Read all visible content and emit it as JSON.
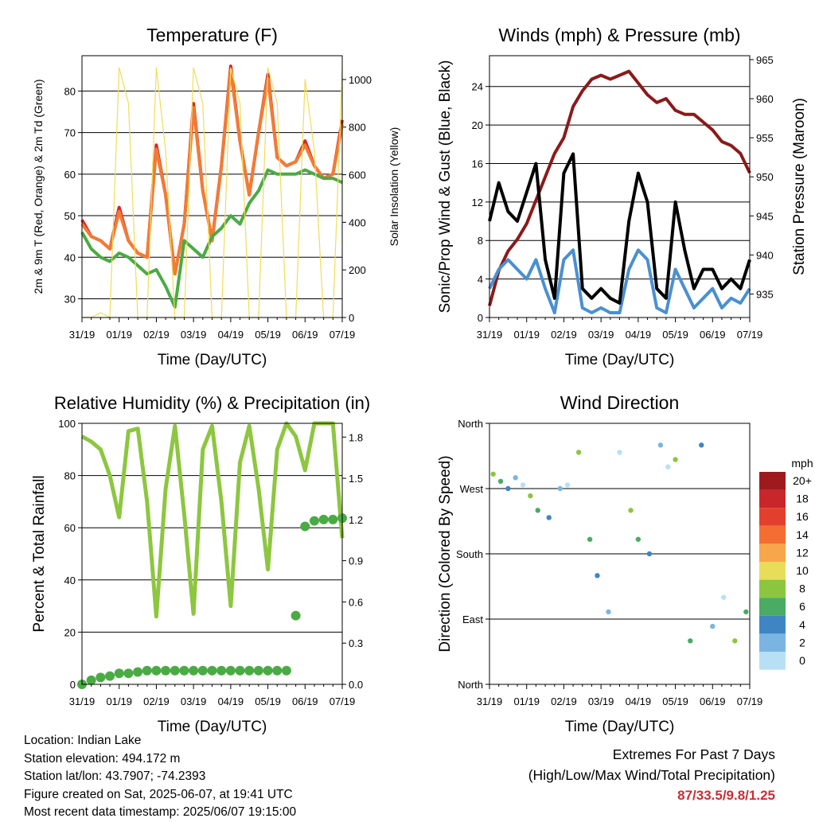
{
  "chart_data": [
    {
      "type": "line",
      "title": "Temperature (F)",
      "xlabel": "Time (Day/UTC)",
      "ylabel": "2m & 9m T (Red, Orange) & 2m Td (Green)",
      "ylabel_right": "Solar Insolation (Yellow)",
      "x_ticks": [
        "31/19",
        "01/19",
        "02/19",
        "03/19",
        "04/19",
        "05/19",
        "06/19",
        "07/19"
      ],
      "ylim": [
        25.5,
        88.5
      ],
      "y_ticks": [
        30,
        40,
        50,
        60,
        70,
        80
      ],
      "y2lim": [
        0,
        1100
      ],
      "y2_ticks": [
        0,
        200,
        400,
        600,
        800,
        1000
      ],
      "grid": true,
      "x": [
        0,
        0.25,
        0.5,
        0.75,
        1,
        1.25,
        1.5,
        1.75,
        2,
        2.25,
        2.5,
        2.75,
        3,
        3.25,
        3.5,
        3.75,
        4,
        4.25,
        4.5,
        4.75,
        5,
        5.25,
        5.5,
        5.75,
        6,
        6.25,
        6.5,
        6.75,
        7
      ],
      "series": [
        {
          "color": "#d62728",
          "values": [
            49,
            45,
            44,
            42,
            52,
            44,
            41,
            40,
            67,
            55,
            36,
            48,
            77,
            56,
            44,
            62,
            86,
            68,
            55,
            70,
            84,
            64,
            62,
            63,
            68,
            62,
            59,
            60,
            73
          ]
        },
        {
          "color": "#f27b35",
          "values": [
            48,
            45,
            44,
            42,
            51,
            44,
            41,
            40,
            66,
            55,
            36,
            48,
            76,
            56,
            44,
            62,
            85,
            68,
            55,
            70,
            83,
            64,
            62,
            63,
            67,
            62,
            59,
            60,
            72
          ]
        },
        {
          "color": "#4aab44",
          "values": [
            46,
            42,
            40,
            39,
            41,
            40,
            38,
            36,
            37,
            33,
            28,
            44,
            42,
            40,
            45,
            47,
            50,
            48,
            53,
            56,
            61,
            60,
            60,
            60,
            61,
            60,
            59,
            59,
            58
          ]
        },
        {
          "color": "#f2dd55",
          "axis": "right",
          "values": [
            0,
            0,
            20,
            0,
            1050,
            900,
            0,
            0,
            1050,
            700,
            0,
            0,
            1050,
            900,
            0,
            0,
            1050,
            900,
            0,
            0,
            1050,
            900,
            0,
            0,
            1000,
            700,
            0,
            0,
            1050
          ]
        }
      ]
    },
    {
      "type": "line",
      "title": "Winds (mph) & Pressure (mb)",
      "xlabel": "Time (Day/UTC)",
      "ylabel": "Sonic/Prop Wind & Gust (Blue, Black)",
      "ylabel_right": "Station Pressure (Maroon)",
      "x_ticks": [
        "31/19",
        "01/19",
        "02/19",
        "03/19",
        "04/19",
        "05/19",
        "06/19",
        "07/19"
      ],
      "ylim": [
        0,
        27.2
      ],
      "y_ticks": [
        0,
        4,
        8,
        12,
        16,
        20,
        24
      ],
      "y2lim": [
        932.0,
        965.5
      ],
      "y2_ticks": [
        935,
        940,
        945,
        950,
        955,
        960,
        965
      ],
      "grid": true,
      "x": [
        0,
        0.25,
        0.5,
        0.75,
        1,
        1.25,
        1.5,
        1.75,
        2,
        2.25,
        2.5,
        2.75,
        3,
        3.25,
        3.5,
        3.75,
        4,
        4.25,
        4.5,
        4.75,
        5,
        5.25,
        5.5,
        5.75,
        6,
        6.25,
        6.5,
        6.75,
        7
      ],
      "series": [
        {
          "color": "#8b1a1a",
          "axis": "right",
          "values": [
            933.5,
            938,
            940.5,
            942,
            944,
            947,
            950,
            953,
            955,
            959,
            961,
            962.5,
            963,
            962.5,
            963,
            963.5,
            962,
            960.5,
            959.5,
            960,
            958.5,
            958,
            958,
            957,
            956,
            954.5,
            954,
            953,
            950.5
          ]
        },
        {
          "color": "#4a90d0",
          "values": [
            3,
            5,
            6,
            5,
            4,
            6,
            3,
            0.5,
            6,
            7,
            1,
            0.5,
            1,
            0.5,
            0.5,
            5,
            7,
            6,
            1,
            0.5,
            5,
            3,
            1,
            2,
            3,
            1,
            2,
            1.5,
            3
          ]
        },
        {
          "color": "#000000",
          "values": [
            10,
            14,
            11,
            10,
            13,
            16,
            6,
            2,
            15,
            17,
            3,
            2,
            3,
            2,
            1.5,
            10,
            15,
            12,
            3,
            2,
            12,
            7,
            3,
            5,
            5,
            3,
            4,
            3,
            6
          ]
        }
      ]
    },
    {
      "type": "line",
      "title": "Relative Humidity (%) & Precipitation (in)",
      "xlabel": "Time (Day/UTC)",
      "ylabel": "Percent & Total Rainfall",
      "x_ticks": [
        "31/19",
        "01/19",
        "02/19",
        "03/19",
        "04/19",
        "05/19",
        "06/19",
        "07/19"
      ],
      "ylim": [
        0,
        100
      ],
      "y_ticks": [
        0,
        20,
        40,
        60,
        80,
        100
      ],
      "y2lim": [
        0,
        1.9
      ],
      "y2_ticks": [
        "0.0",
        "0.3",
        "0.6",
        "0.9",
        "1.2",
        "1.5",
        "1.8"
      ],
      "grid": true,
      "x": [
        0,
        0.25,
        0.5,
        0.75,
        1,
        1.25,
        1.5,
        1.75,
        2,
        2.25,
        2.5,
        2.75,
        3,
        3.25,
        3.5,
        3.75,
        4,
        4.25,
        4.5,
        4.75,
        5,
        5.25,
        5.5,
        5.75,
        6,
        6.25,
        6.5,
        6.75,
        7
      ],
      "series": [
        {
          "color": "#8dc63f",
          "values": [
            95,
            93,
            90,
            80,
            64,
            97,
            98,
            70,
            26,
            75,
            99,
            65,
            27,
            90,
            99,
            70,
            30,
            85,
            99,
            75,
            44,
            90,
            100,
            95,
            82,
            100,
            100,
            100,
            56
          ]
        },
        {
          "color": "#4aab44",
          "axis": "right",
          "marker": "circle",
          "values": [
            0,
            0.03,
            0.05,
            0.06,
            0.08,
            0.08,
            0.09,
            0.1,
            0.1,
            0.1,
            0.1,
            0.1,
            0.1,
            0.1,
            0.1,
            0.1,
            0.1,
            0.1,
            0.1,
            0.1,
            0.1,
            0.1,
            0.1,
            0.5,
            1.15,
            1.19,
            1.2,
            1.2,
            1.21
          ]
        }
      ]
    },
    {
      "type": "scatter",
      "title": "Wind Direction",
      "xlabel": "Time (Day/UTC)",
      "ylabel": "Direction (Colored By Speed)",
      "x_ticks": [
        "31/19",
        "01/19",
        "02/19",
        "03/19",
        "04/19",
        "05/19",
        "06/19",
        "07/19"
      ],
      "y_ticks": [
        "North",
        "East",
        "South",
        "West",
        "North"
      ],
      "ylim": [
        0,
        360
      ],
      "grid": true,
      "x": [
        0.1,
        0.3,
        0.5,
        0.7,
        0.9,
        1.1,
        1.3,
        1.6,
        1.9,
        2.1,
        2.4,
        2.7,
        2.9,
        3.2,
        3.5,
        3.8,
        4.0,
        4.3,
        4.6,
        4.8,
        5.0,
        5.4,
        5.7,
        6.0,
        6.3,
        6.6,
        6.9
      ],
      "values": [
        290,
        280,
        270,
        285,
        275,
        260,
        240,
        230,
        270,
        275,
        320,
        200,
        150,
        100,
        320,
        240,
        200,
        180,
        330,
        300,
        310,
        60,
        330,
        80,
        120,
        60,
        100
      ],
      "colorbar_title": "mph",
      "colorbar_labels": [
        "20+",
        "18",
        "16",
        "14",
        "12",
        "10",
        "8",
        "6",
        "4",
        "2",
        "0"
      ],
      "colorbar_colors": [
        "#9e1a1d",
        "#c8262a",
        "#e2402d",
        "#f46e33",
        "#f8a64b",
        "#e8dd58",
        "#8cc63f",
        "#4aab64",
        "#3f85c4",
        "#7ab5e2",
        "#b7e0f5"
      ]
    }
  ],
  "info": {
    "location": "Location: Indian Lake",
    "elevation": "Station elevation: 494.172 m",
    "latlon": "Station lat/lon: 43.7907; -74.2393",
    "created": "Figure created on Sat, 2025-06-07, at 19:41 UTC",
    "latest": "Most recent data timestamp: 2025/06/07 19:15:00"
  },
  "extremes": {
    "title": "Extremes For Past 7 Days",
    "subtitle": "(High/Low/Max Wind/Total Precipitation)",
    "values": "87/33.5/9.8/1.25"
  }
}
